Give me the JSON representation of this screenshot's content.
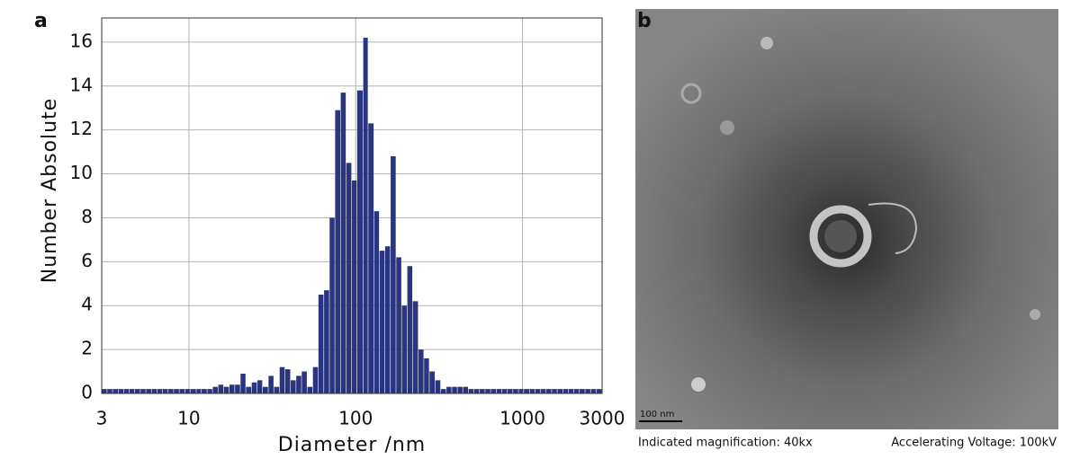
{
  "chart_data": {
    "type": "histogram",
    "label": "a",
    "xlabel": "Diameter /nm",
    "ylabel": "Number Absolute",
    "bins": [
      3,
      3.24,
      3.5,
      3.78,
      4.08,
      4.4,
      4.75,
      5.13,
      5.54,
      5.98,
      6.46,
      6.98,
      7.53,
      8.13,
      8.78,
      9.49,
      10.2,
      11.1,
      11.9,
      12.9,
      13.9,
      15,
      16.2,
      17.5,
      18.9,
      20.4,
      22,
      23.8,
      25.7,
      27.7,
      30,
      32.4,
      35,
      37.8,
      40.8,
      44,
      47.5,
      51.3,
      55.4,
      59.8,
      64.6,
      69.8,
      75.3,
      81.3,
      87.8,
      94.9,
      102,
      111,
      119,
      129,
      139,
      150,
      162,
      175,
      189,
      204,
      220,
      238,
      257,
      277,
      300,
      324,
      350,
      378,
      408,
      440,
      475,
      513,
      554,
      598,
      646,
      698,
      753,
      813,
      878,
      949,
      1020,
      1110,
      1190,
      1290,
      1390,
      1500,
      1620,
      1750,
      1890,
      2040,
      2200,
      2380,
      2570,
      2770,
      3000
    ],
    "values": [
      0.2,
      0.2,
      0.2,
      0.2,
      0.2,
      0.2,
      0.2,
      0.2,
      0.2,
      0.2,
      0.2,
      0.2,
      0.2,
      0.2,
      0.2,
      0.2,
      0.2,
      0.2,
      0.2,
      0.2,
      0.3,
      0.4,
      0.3,
      0.4,
      0.4,
      0.9,
      0.3,
      0.5,
      0.6,
      0.3,
      0.8,
      0.3,
      1.2,
      1.1,
      0.6,
      0.8,
      1.0,
      0.3,
      1.2,
      4.5,
      4.7,
      8.0,
      12.9,
      13.7,
      10.5,
      9.7,
      13.8,
      16.2,
      12.3,
      8.3,
      6.5,
      6.7,
      10.8,
      6.2,
      4.0,
      5.8,
      4.2,
      2.0,
      1.6,
      1.0,
      0.6,
      0.2,
      0.3,
      0.3,
      0.3,
      0.3,
      0.2,
      0.2,
      0.2,
      0.2,
      0.2,
      0.2,
      0.2,
      0.2,
      0.2,
      0.2,
      0.2,
      0.2,
      0.2,
      0.2,
      0.2,
      0.2,
      0.2,
      0.2,
      0.2,
      0.2,
      0.2,
      0.2,
      0.2,
      0.2
    ],
    "color": "#2b347f",
    "xscale": "log",
    "xlim": [
      3,
      3000
    ],
    "xticks": [
      3,
      10,
      100,
      1000,
      3000
    ],
    "ylim": [
      0,
      17.1
    ],
    "yticks": [
      0,
      2,
      4,
      6,
      8,
      10,
      12,
      14,
      16
    ],
    "grid": true
  },
  "image_panel": {
    "label": "b",
    "scale_bar": "100 nm",
    "caption_left": "Indicated magnification: 40kx",
    "caption_right": "Accelerating Voltage: 100kV"
  }
}
